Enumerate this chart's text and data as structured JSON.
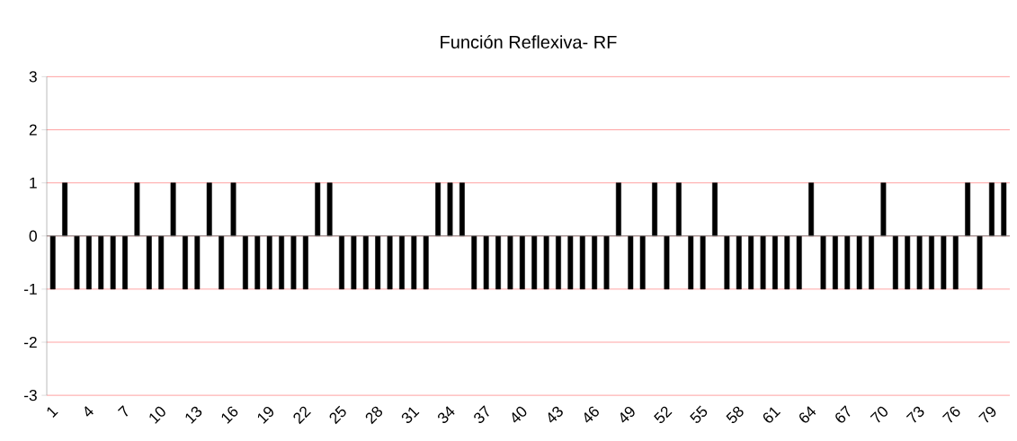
{
  "chart_data": {
    "type": "bar",
    "title": "Función Reflexiva- RF",
    "categories": [
      "1",
      null,
      null,
      "4",
      null,
      null,
      "7",
      null,
      null,
      "10",
      null,
      null,
      "13",
      null,
      null,
      "16",
      null,
      null,
      "19",
      null,
      null,
      "22",
      null,
      null,
      "25",
      null,
      null,
      "28",
      null,
      null,
      "31",
      null,
      null,
      "34",
      null,
      null,
      "37",
      null,
      null,
      "40",
      null,
      null,
      "43",
      null,
      null,
      "46",
      null,
      null,
      "49",
      null,
      null,
      "52",
      null,
      null,
      "55",
      null,
      null,
      "58",
      null,
      null,
      "61",
      null,
      null,
      "64",
      null,
      null,
      "67",
      null,
      null,
      "70",
      null,
      null,
      "73",
      null,
      null,
      "76",
      null,
      null,
      "79",
      null
    ],
    "values": [
      -1,
      1,
      -1,
      -1,
      -1,
      -1,
      -1,
      1,
      -1,
      -1,
      1,
      -1,
      -1,
      1,
      -1,
      1,
      -1,
      -1,
      -1,
      -1,
      -1,
      -1,
      1,
      1,
      -1,
      -1,
      -1,
      -1,
      -1,
      -1,
      -1,
      -1,
      1,
      1,
      1,
      -1,
      -1,
      -1,
      -1,
      -1,
      -1,
      -1,
      -1,
      -1,
      -1,
      -1,
      -1,
      1,
      -1,
      -1,
      1,
      -1,
      1,
      -1,
      -1,
      1,
      -1,
      -1,
      -1,
      -1,
      -1,
      -1,
      -1,
      1,
      -1,
      -1,
      -1,
      -1,
      -1,
      1,
      -1,
      -1,
      -1,
      -1,
      -1,
      -1,
      1,
      -1,
      1,
      1
    ],
    "color": "#000000",
    "ylim": [
      -3,
      3
    ],
    "yticks": [
      -3,
      -2,
      -1,
      0,
      1,
      2,
      3
    ],
    "grid": "y"
  }
}
